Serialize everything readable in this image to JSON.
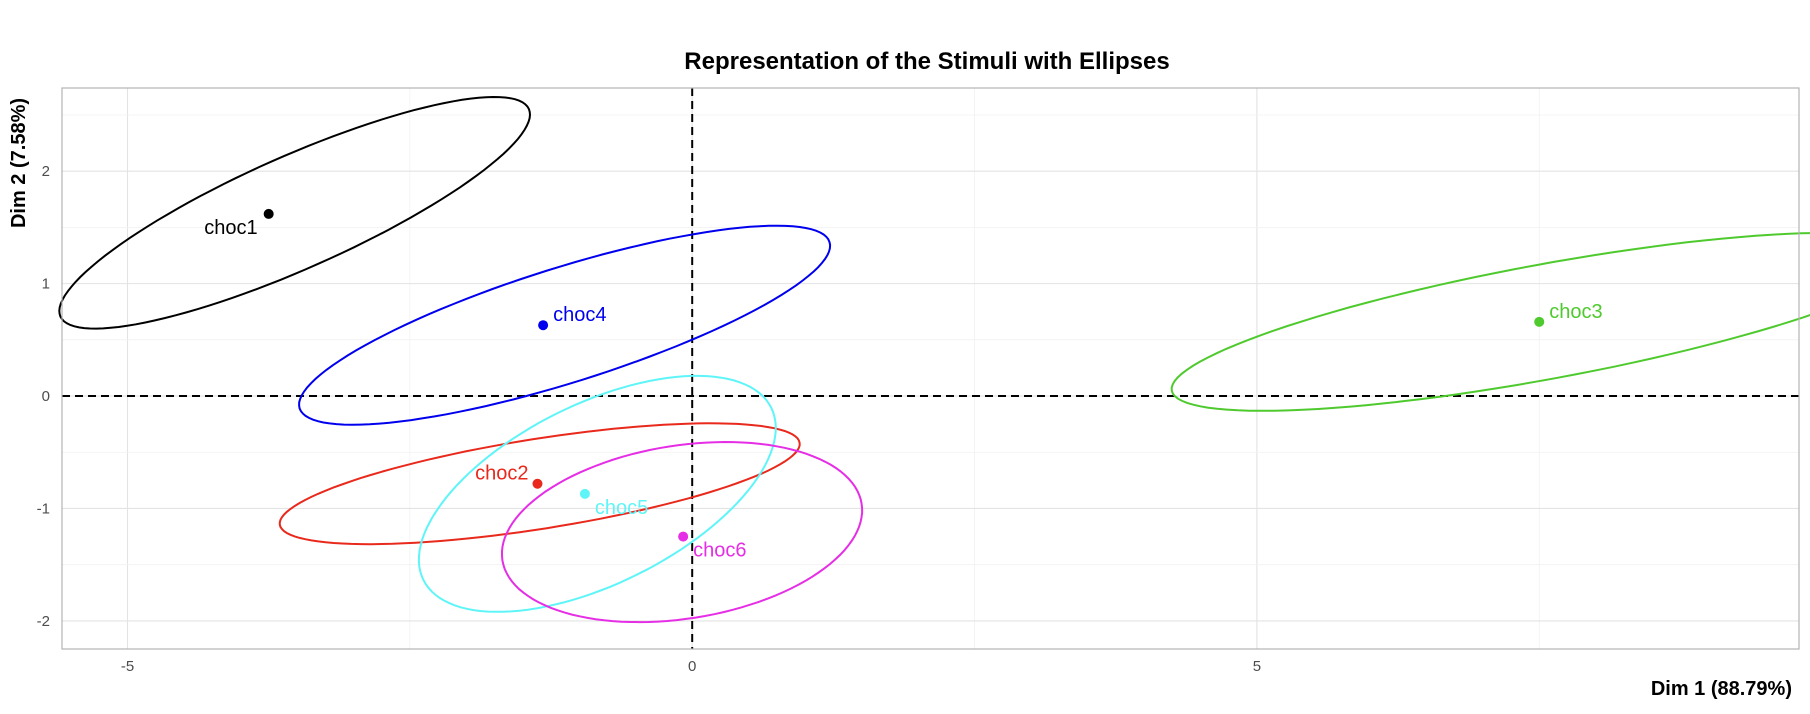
{
  "chart_data": {
    "type": "scatter",
    "title": "Representation of the Stimuli with Ellipses",
    "xlabel": "Dim 1 (88.79%)",
    "ylabel": "Dim 2 (7.58%)",
    "xlim": [
      -5.58,
      9.8
    ],
    "ylim": [
      -2.25,
      2.74
    ],
    "x_ticks": [
      -5,
      0,
      5
    ],
    "y_ticks": [
      -2,
      -1,
      0,
      1,
      2
    ],
    "grid": true,
    "reference_lines": {
      "x": 0,
      "y": 0,
      "style": "dashed"
    },
    "points": [
      {
        "label": "choc1",
        "x": -3.75,
        "y": 1.62,
        "color": "#000000",
        "label_pos": "left-below"
      },
      {
        "label": "choc2",
        "x": -1.37,
        "y": -0.78,
        "color": "#e8291c",
        "label_pos": "left"
      },
      {
        "label": "choc3",
        "x": 7.5,
        "y": 0.66,
        "color": "#4fca2e",
        "label_pos": "right"
      },
      {
        "label": "choc4",
        "x": -1.32,
        "y": 0.63,
        "color": "#0000ee",
        "label_pos": "right"
      },
      {
        "label": "choc5",
        "x": -0.95,
        "y": -0.87,
        "color": "#5ff5f8",
        "label_pos": "right-below"
      },
      {
        "label": "choc6",
        "x": -0.08,
        "y": -1.25,
        "color": "#e52ee5",
        "label_pos": "right-below"
      }
    ],
    "ellipses": [
      {
        "series": "choc1",
        "cx": -3.52,
        "cy": 1.63,
        "rx": 2.27,
        "ry": 0.5,
        "angle_deg": 24,
        "color": "#000000"
      },
      {
        "series": "choc2",
        "cx": -1.35,
        "cy": -0.78,
        "rx": 2.33,
        "ry": 0.4,
        "angle_deg": 9,
        "color": "#e8291c"
      },
      {
        "series": "choc3",
        "cx": 7.55,
        "cy": 0.66,
        "rx": 3.36,
        "ry": 0.51,
        "angle_deg": 10.5,
        "color": "#4fca2e"
      },
      {
        "series": "choc4",
        "cx": -1.13,
        "cy": 0.63,
        "rx": 2.46,
        "ry": 0.51,
        "angle_deg": 17.5,
        "color": "#0000ee"
      },
      {
        "series": "choc5",
        "cx": -0.84,
        "cy": -0.87,
        "rx": 1.72,
        "ry": 0.8,
        "angle_deg": 26.5,
        "color": "#5ff5f8"
      },
      {
        "series": "choc6",
        "cx": -0.09,
        "cy": -1.21,
        "rx": 1.61,
        "ry": 0.77,
        "angle_deg": 9,
        "color": "#e52ee5"
      }
    ]
  }
}
